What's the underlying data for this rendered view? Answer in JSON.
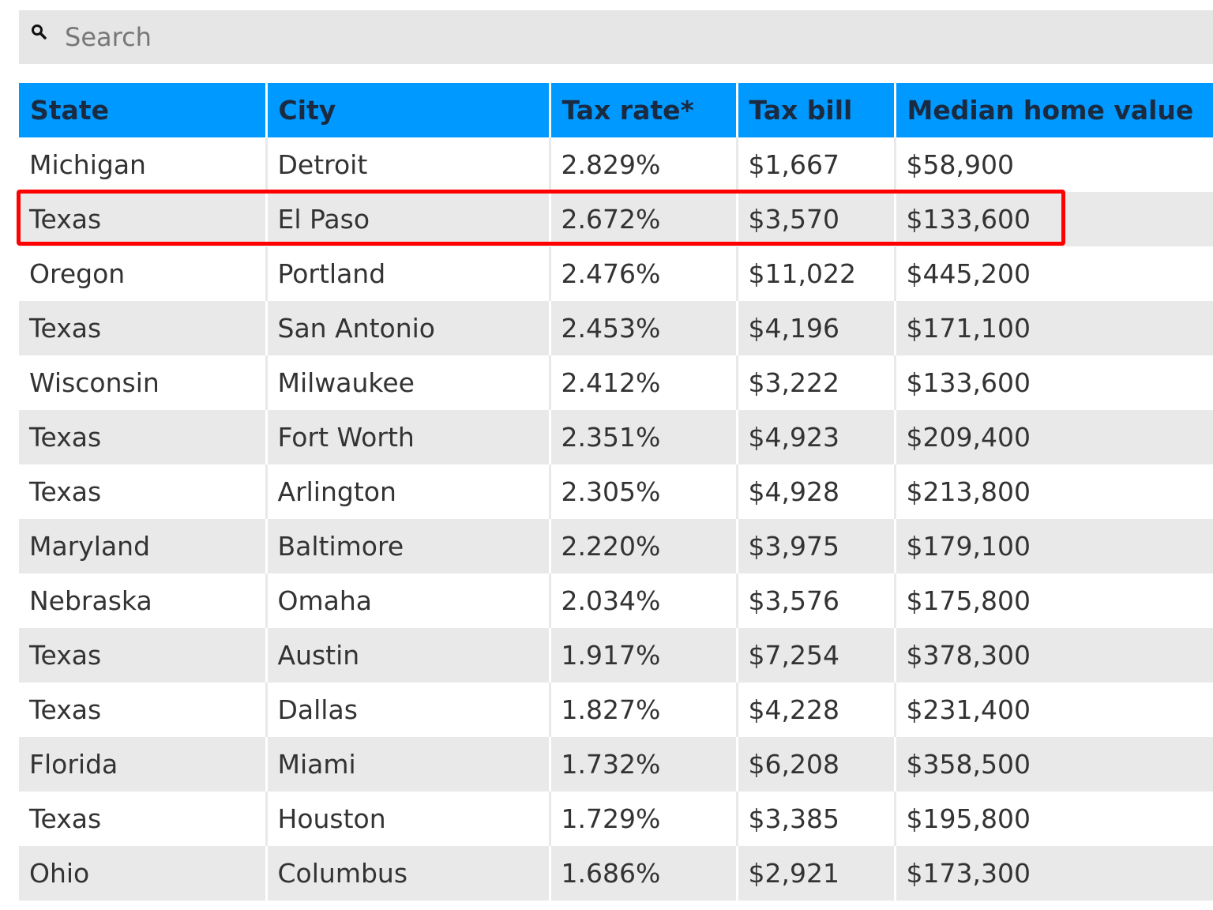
{
  "search": {
    "placeholder": "Search",
    "icon": "search-icon"
  },
  "table": {
    "headers": [
      "State",
      "City",
      "Tax rate*",
      "Tax bill",
      "Median home value"
    ],
    "rows": [
      [
        "Michigan",
        "Detroit",
        "2.829%",
        "$1,667",
        "$58,900"
      ],
      [
        "Texas",
        "El Paso",
        "2.672%",
        "$3,570",
        "$133,600"
      ],
      [
        "Oregon",
        "Portland",
        "2.476%",
        "$11,022",
        "$445,200"
      ],
      [
        "Texas",
        "San Antonio",
        "2.453%",
        "$4,196",
        "$171,100"
      ],
      [
        "Wisconsin",
        "Milwaukee",
        "2.412%",
        "$3,222",
        "$133,600"
      ],
      [
        "Texas",
        "Fort Worth",
        "2.351%",
        "$4,923",
        "$209,400"
      ],
      [
        "Texas",
        "Arlington",
        "2.305%",
        "$4,928",
        "$213,800"
      ],
      [
        "Maryland",
        "Baltimore",
        "2.220%",
        "$3,975",
        "$179,100"
      ],
      [
        "Nebraska",
        "Omaha",
        "2.034%",
        "$3,576",
        "$175,800"
      ],
      [
        "Texas",
        "Austin",
        "1.917%",
        "$7,254",
        "$378,300"
      ],
      [
        "Texas",
        "Dallas",
        "1.827%",
        "$4,228",
        "$231,400"
      ],
      [
        "Florida",
        "Miami",
        "1.732%",
        "$6,208",
        "$358,500"
      ],
      [
        "Texas",
        "Houston",
        "1.729%",
        "$3,385",
        "$195,800"
      ],
      [
        "Ohio",
        "Columbus",
        "1.686%",
        "$2,921",
        "$173,300"
      ]
    ],
    "highlighted_row_index": 1
  },
  "colors": {
    "header_bg": "#0099ff",
    "header_text": "#1a2a40",
    "zebra_row": "#e9e9e9",
    "highlight_border": "#ff0000",
    "search_bg": "#e6e6e6"
  }
}
